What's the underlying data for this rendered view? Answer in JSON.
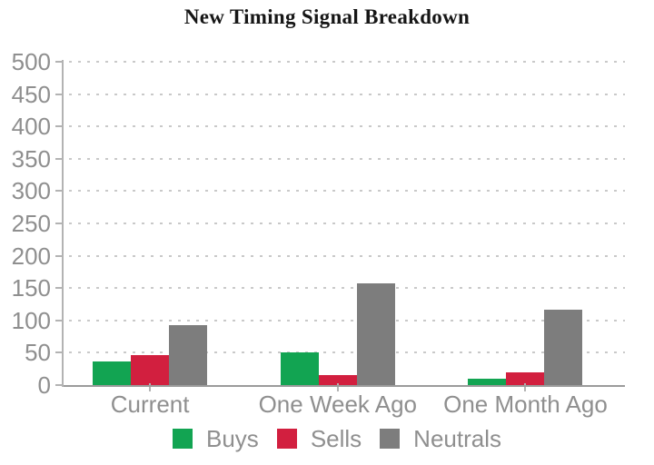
{
  "chart_data": {
    "type": "bar",
    "title": "New Timing Signal Breakdown",
    "categories": [
      "Current",
      "One Week Ago",
      "One Month Ago"
    ],
    "series": [
      {
        "name": "Buys",
        "color": "#12a452",
        "values": [
          37,
          50,
          10
        ]
      },
      {
        "name": "Sells",
        "color": "#d21f3f",
        "values": [
          47,
          15,
          19
        ]
      },
      {
        "name": "Neutrals",
        "color": "#7d7d7d",
        "values": [
          92,
          158,
          116
        ]
      }
    ],
    "ylim": [
      0,
      500
    ],
    "ytick_step": 50,
    "ytick_labels": [
      "0",
      "50",
      "100",
      "150",
      "200",
      "250",
      "300",
      "350",
      "400",
      "450",
      "500"
    ],
    "grid": "horizontal-dashed",
    "legend_position": "bottom",
    "xlabel": "",
    "ylabel": "",
    "axis_text_color": "#8f8f8f",
    "gridline_color": "#c9c9c9",
    "axis_line_color": "#b3b3b3"
  }
}
